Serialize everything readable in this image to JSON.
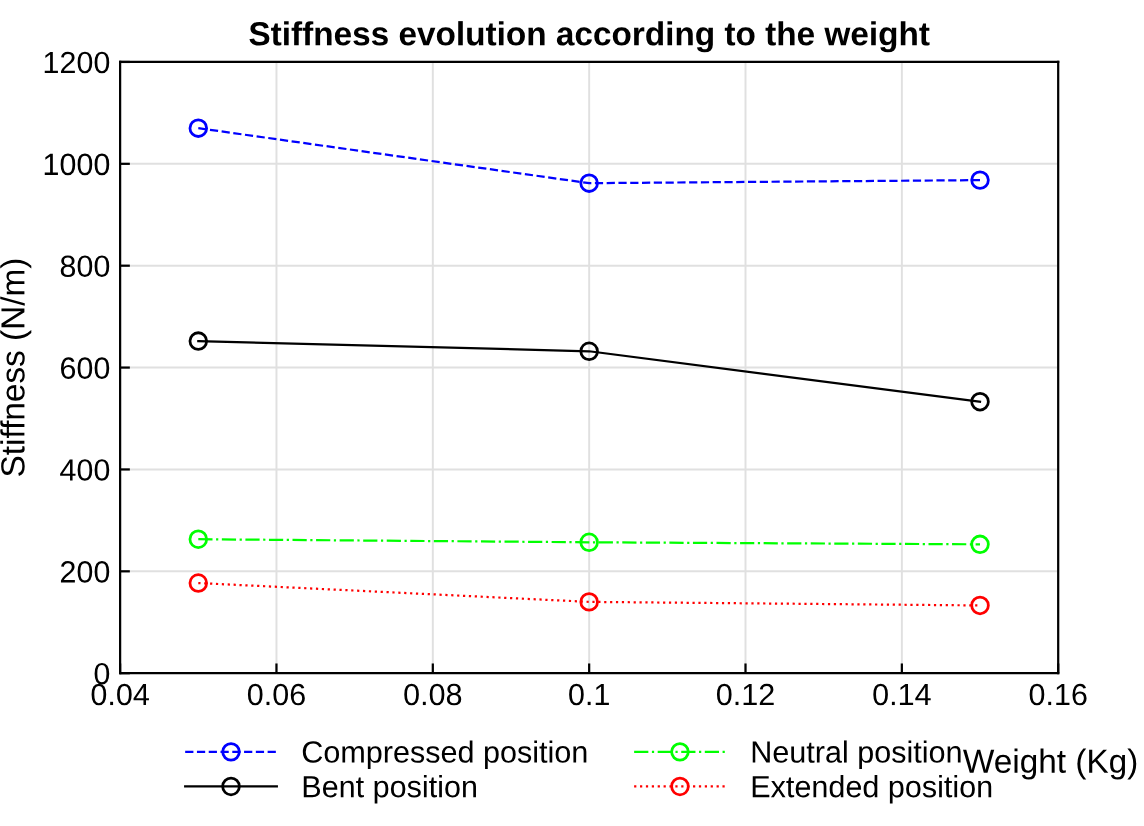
{
  "chart_data": {
    "type": "line",
    "title": "Stiffness evolution according to the weight",
    "xlabel": "Weight (Kg)",
    "ylabel": "Stiffness (N/m)",
    "x": [
      0.05,
      0.1,
      0.15
    ],
    "series": [
      {
        "name": "Compressed position",
        "color": "#0000ff",
        "values": [
          1070,
          962,
          968
        ],
        "line_style": "dashed"
      },
      {
        "name": "Neutral position",
        "color": "#00ff00",
        "values": [
          263,
          257,
          253
        ],
        "line_style": "dashdot"
      },
      {
        "name": "Bent position",
        "color": "#000000",
        "values": [
          652,
          632,
          533
        ],
        "line_style": "solid"
      },
      {
        "name": "Extended position",
        "color": "#ff0000",
        "values": [
          177,
          140,
          133
        ],
        "line_style": "dotted"
      }
    ],
    "xlim": [
      0.04,
      0.16
    ],
    "xticks": [
      0.04,
      0.06,
      0.08,
      0.1,
      0.12,
      0.14,
      0.16
    ],
    "ylim": [
      0,
      1200
    ],
    "yticks": [
      0,
      200,
      400,
      600,
      800,
      1000,
      1200
    ],
    "grid": true,
    "legend": "bottom",
    "marker": "circle"
  }
}
